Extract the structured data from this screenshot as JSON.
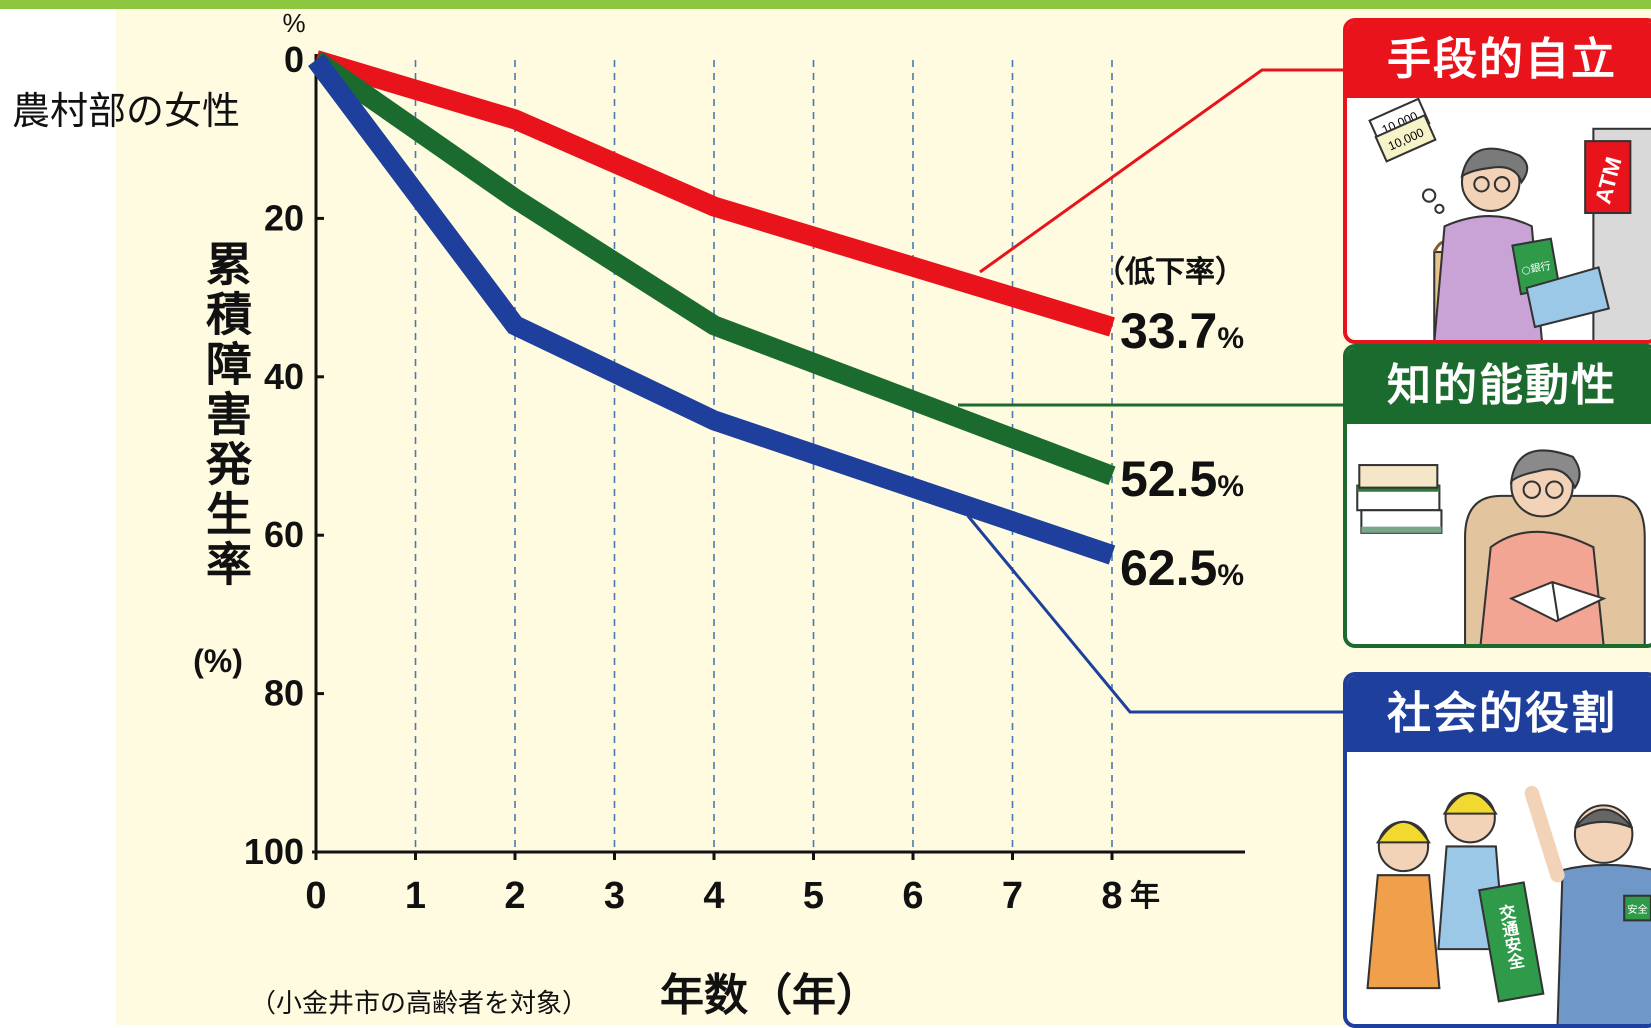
{
  "figure_label": "農村部の女性",
  "chart_data": {
    "type": "line",
    "x": [
      0,
      2,
      4,
      8
    ],
    "series": [
      {
        "name": "手段的自立",
        "values": [
          0,
          7.5,
          18.5,
          33.7
        ],
        "color": "#e8131b"
      },
      {
        "name": "知的能動性",
        "values": [
          0,
          17.5,
          33.5,
          52.5
        ],
        "color": "#1c6b2e"
      },
      {
        "name": "社会的役割",
        "values": [
          0,
          33.5,
          45.5,
          62.5
        ],
        "color": "#1f3f9c"
      }
    ],
    "ylim": [
      0,
      100
    ],
    "y_inverted": true,
    "yticks": [
      "0",
      "20",
      "40",
      "60",
      "80",
      "100"
    ],
    "xticks": [
      "0",
      "1",
      "2",
      "3",
      "4",
      "5",
      "6",
      "7",
      "8"
    ],
    "x_unit": "年",
    "y_unit": "%",
    "xlabel": "年数（年）",
    "ylabel": "累積障害発生率",
    "ylabel_unit": "(%)",
    "note": "（小金井市の高齢者を対象）",
    "rate_header": "（低下率）",
    "end_labels": [
      {
        "value": "33.7",
        "unit": "%"
      },
      {
        "value": "52.5",
        "unit": "%"
      },
      {
        "value": "62.5",
        "unit": "%"
      }
    ],
    "grid": "vertical dashed"
  },
  "cards": [
    {
      "title": "手段的自立",
      "color": "#e8131b",
      "picture": "elderly woman with money at ATM"
    },
    {
      "title": "知的能動性",
      "color": "#1c6b2e",
      "picture": "elderly woman reading in armchair with books"
    },
    {
      "title": "社会的役割",
      "color": "#1f3f9c",
      "picture": "elderly man guiding school children, traffic safety flag"
    }
  ],
  "card_picture_text": {
    "bank_note": "10,000",
    "bank_book": "○銀行",
    "atm": "ATM",
    "flag": "交通安全",
    "armband": "安全"
  }
}
